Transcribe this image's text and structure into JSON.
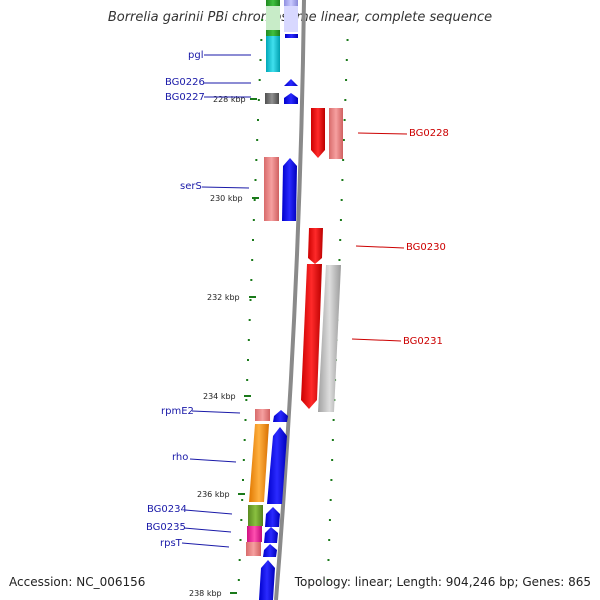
{
  "header": {
    "title": "Borrelia garinii PBi chromosome linear, complete sequence"
  },
  "footer": {
    "accession": "Accession: NC_006156",
    "stats": "Topology: linear; Length: 904,246 bp; Genes: 865"
  },
  "scale": {
    "ticks": [
      "228 kbp",
      "230 kbp",
      "232 kbp",
      "234 kbp",
      "236 kbp",
      "238 kbp"
    ]
  },
  "genes": {
    "forward": [
      "pgl",
      "BG0226",
      "BG0227",
      "serS",
      "rpmE2",
      "rho",
      "BG0234",
      "BG0235",
      "rpsT"
    ],
    "reverse": [
      "BG0228",
      "BG0230",
      "BG0231"
    ]
  },
  "colors": {
    "forward_arrow": "#0000ee",
    "reverse_arrow": "#ee0000",
    "backbone": "#888888",
    "tick": "#1a7a1a"
  }
}
